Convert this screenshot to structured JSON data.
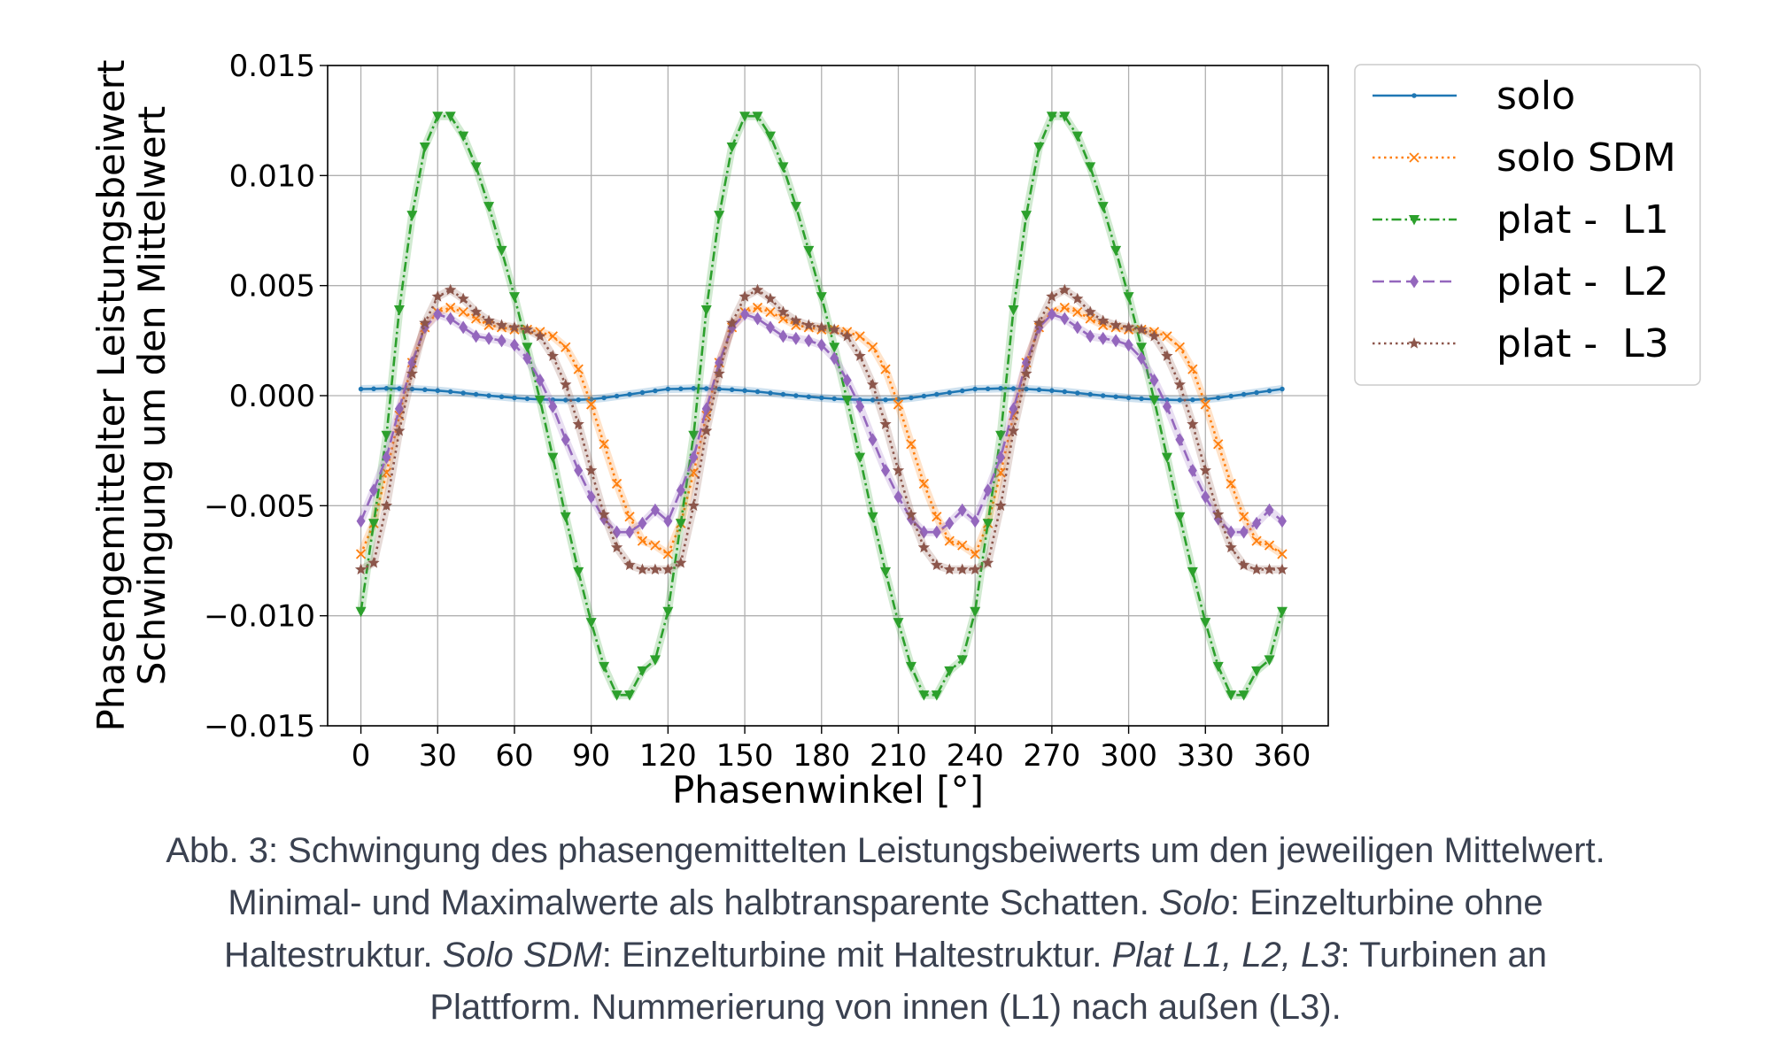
{
  "chart_data": {
    "type": "line",
    "xlabel": "Phasenwinkel [°]",
    "ylabel_lines": [
      "Phasengemittelter Leistungsbeiwert",
      "Schwingung um den Mittelwert"
    ],
    "xlim": [
      -13,
      378
    ],
    "ylim": [
      -0.015,
      0.015
    ],
    "xticks": [
      0,
      30,
      60,
      90,
      120,
      150,
      180,
      210,
      240,
      270,
      300,
      330,
      360
    ],
    "yticks": [
      0.015,
      0.01,
      0.005,
      0.0,
      -0.005,
      -0.01,
      -0.015
    ],
    "ytick_labels": [
      "0.015",
      "0.010",
      "0.005",
      "0.000",
      "−0.005",
      "−0.010",
      "−0.015"
    ],
    "grid": true,
    "legend_position": "outside-right-top",
    "period_deg": 120,
    "step_deg": 5,
    "series": [
      {
        "name": "solo",
        "color": "#1f77b4",
        "linestyle": "solid",
        "marker": "dot",
        "values_one_period": [
          0.0003,
          0.00031,
          0.00033,
          0.00032,
          0.0003,
          0.00027,
          0.00023,
          0.00018,
          0.00012,
          6e-05,
          0.0,
          -5e-05,
          -0.0001,
          -0.00014,
          -0.00017,
          -0.00019,
          -0.0002,
          -0.00019,
          -0.00016,
          -0.0001,
          -2e-05,
          6e-05,
          0.00014,
          0.00022,
          0.0003
        ]
      },
      {
        "name": "solo SDM",
        "color": "#ff7f0e",
        "linestyle": "dotted",
        "marker": "x",
        "values_one_period": [
          -0.0072,
          -0.0058,
          -0.0035,
          -0.0009,
          0.0015,
          0.0031,
          0.0038,
          0.004,
          0.0038,
          0.0035,
          0.0032,
          0.0031,
          0.003,
          0.003,
          0.0029,
          0.0027,
          0.0022,
          0.0012,
          -0.0004,
          -0.0022,
          -0.004,
          -0.0055,
          -0.0066,
          -0.0068,
          -0.0072
        ]
      },
      {
        "name": "plat -  L1",
        "color": "#2ca02c",
        "linestyle": "dashdot",
        "marker": "triangle-down",
        "values_one_period": [
          -0.0098,
          -0.0058,
          -0.0018,
          0.0039,
          0.0082,
          0.0113,
          0.0127,
          0.0127,
          0.0118,
          0.0104,
          0.0086,
          0.0066,
          0.0045,
          0.0022,
          -0.0002,
          -0.0028,
          -0.0055,
          -0.008,
          -0.0103,
          -0.0123,
          -0.0136,
          -0.0136,
          -0.0125,
          -0.012,
          -0.0098
        ]
      },
      {
        "name": "plat -  L2",
        "color": "#9467bd",
        "linestyle": "dashed",
        "marker": "diamond",
        "values_one_period": [
          -0.0057,
          -0.0043,
          -0.0028,
          -0.0006,
          0.0015,
          0.0031,
          0.0037,
          0.0035,
          0.0031,
          0.0027,
          0.0026,
          0.0025,
          0.0023,
          0.0017,
          0.0007,
          -0.0005,
          -0.002,
          -0.0034,
          -0.0046,
          -0.0056,
          -0.0062,
          -0.0062,
          -0.0058,
          -0.0052,
          -0.0057
        ]
      },
      {
        "name": "plat -  L3",
        "color": "#8c564b",
        "linestyle": "dotted",
        "marker": "star",
        "values_one_period": [
          -0.0079,
          -0.0076,
          -0.005,
          -0.0016,
          0.001,
          0.0033,
          0.0045,
          0.0048,
          0.0044,
          0.0038,
          0.0034,
          0.0032,
          0.0031,
          0.003,
          0.0027,
          0.0018,
          0.0005,
          -0.0013,
          -0.0034,
          -0.0054,
          -0.0069,
          -0.0077,
          -0.0079,
          -0.0079,
          -0.0079
        ]
      }
    ]
  },
  "caption": {
    "line1": "Abb. 3: Schwingung des phasengemittelten Leistungsbeiwerts um den jeweiligen Mittelwert.",
    "line2_a": "Minimal- und Maximalwerte als halbtransparente Schatten. ",
    "line2_b": "Solo",
    "line2_c": ": Einzelturbine ohne",
    "line3_a": "Haltestruktur. ",
    "line3_b": "Solo SDM",
    "line3_c": ": Einzelturbine mit Haltestruktur. ",
    "line3_d": "Plat L1, L2, L3",
    "line3_e": ": Turbinen an",
    "line4": "Plattform. Nummerierung von innen (L1) nach außen (L3)."
  }
}
